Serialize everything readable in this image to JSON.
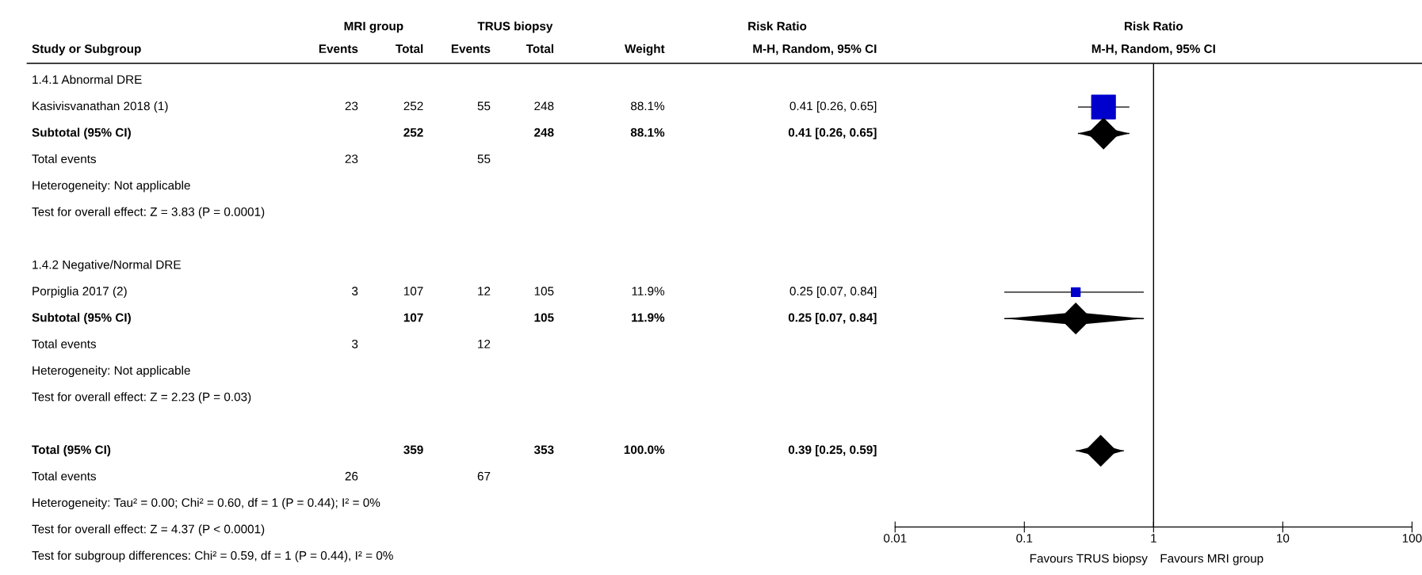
{
  "chart_data": [
    {
      "type": "other",
      "categories": [
        "Study or Subgroup",
        "Events",
        "Total",
        "Events",
        "Total",
        "Weight",
        "M-H, Random, 95% CI"
      ],
      "annotations": [
        "MRI group",
        "TRUS biopsy",
        "Risk Ratio"
      ],
      "y_categories": [
        "1.4.1 Abnormal DRE",
        "Kasivisvanathan 2018 (1)",
        "Subtotal (95% CI)",
        "Total events",
        "Heterogeneity: Not applicable",
        "Test for overall effect: Z = 3.83 (P = 0.0001)",
        null,
        "1.4.2 Negative/Normal DRE",
        "Porpiglia 2017 (2)",
        "Subtotal (95% CI)",
        "Total events",
        "Heterogeneity: Not applicable",
        "Test for overall effect: Z = 2.23 (P = 0.03)",
        null,
        "Total (95% CI)",
        "Total events",
        "Heterogeneity: Tau² = 0.00; Chi² = 0.60, df = 1 (P = 0.44); I² = 0%",
        "Test for overall effect: Z = 4.37 (P < 0.0001)",
        "Test for subgroup differences: Chi² = 0.59, df = 1 (P = 0.44), I² = 0%"
      ],
      "cell_labels": [
        [
          null,
          null,
          null,
          null,
          null,
          null
        ],
        [
          "23",
          "252",
          "55",
          "248",
          "88.1%",
          "0.41 [0.26, 0.65]"
        ],
        [
          null,
          "252",
          null,
          "248",
          "88.1%",
          "0.41 [0.26, 0.65]"
        ],
        [
          "23",
          null,
          "55",
          null,
          null,
          null
        ],
        [
          null,
          null,
          null,
          null,
          null,
          null
        ],
        [
          null,
          null,
          null,
          null,
          null,
          null
        ],
        [
          null,
          null,
          null,
          null,
          null,
          null
        ],
        [
          null,
          null,
          null,
          null,
          null,
          null
        ],
        [
          "3",
          "107",
          "12",
          "105",
          "11.9%",
          "0.25 [0.07, 0.84]"
        ],
        [
          null,
          "107",
          null,
          "105",
          "11.9%",
          "0.25 [0.07, 0.84]"
        ],
        [
          "3",
          null,
          "12",
          null,
          null,
          null
        ],
        [
          null,
          null,
          null,
          null,
          null,
          null
        ],
        [
          null,
          null,
          null,
          null,
          null,
          null
        ],
        [
          null,
          null,
          null,
          null,
          null,
          null
        ],
        [
          null,
          "359",
          null,
          "353",
          "100.0%",
          "0.39 [0.25, 0.59]"
        ],
        [
          "26",
          null,
          "67",
          null,
          null,
          null
        ],
        [
          null,
          null,
          null,
          null,
          null,
          null
        ],
        [
          null,
          null,
          null,
          null,
          null,
          null
        ],
        [
          null,
          null,
          null,
          null,
          null,
          null
        ]
      ]
    },
    {
      "type": "scatter",
      "orientation": "horizontal",
      "title": "Risk Ratio",
      "subtitle": "M-H, Random, 95% CI",
      "categories": [
        null,
        null,
        null,
        null,
        null,
        null,
        null,
        null,
        null,
        null,
        null,
        null,
        null,
        null,
        null,
        null,
        null
      ],
      "log": "x",
      "xlim": [
        0.01,
        100
      ],
      "xticks": [
        0.01,
        0.1,
        1,
        10,
        100
      ],
      "ref_lines": [
        {
          "axis": "x",
          "value": 1,
          "color": "#000000"
        }
      ],
      "annotations": [
        "Favours TRUS biopsy",
        "Favours MRI group"
      ],
      "series": [
        {
          "type": "scatter",
          "marker": "square",
          "color": "#0000cc",
          "values": [
            null,
            0.41,
            null,
            null,
            null,
            null,
            null,
            null,
            0.25,
            null,
            null,
            null,
            null,
            null,
            null,
            null,
            null
          ],
          "errors": [
            null,
            [
              0.26,
              0.65
            ],
            null,
            null,
            null,
            null,
            null,
            null,
            [
              0.07,
              0.84
            ],
            null,
            null,
            null,
            null,
            null,
            null,
            null,
            null
          ],
          "sizes": [
            null,
            1,
            null,
            null,
            null,
            null,
            null,
            null,
            0.135,
            null,
            null,
            null,
            null,
            null,
            null,
            null,
            null
          ]
        },
        {
          "type": "scatter",
          "marker": "diamond",
          "color": "#000000",
          "values": [
            null,
            null,
            0.41,
            null,
            null,
            null,
            null,
            null,
            null,
            0.25,
            null,
            null,
            null,
            null,
            0.39,
            null,
            null
          ],
          "errors": [
            null,
            null,
            [
              0.26,
              0.65
            ],
            null,
            null,
            null,
            null,
            null,
            null,
            [
              0.07,
              0.84
            ],
            null,
            null,
            null,
            null,
            [
              0.25,
              0.59
            ],
            null,
            null
          ]
        }
      ]
    }
  ]
}
